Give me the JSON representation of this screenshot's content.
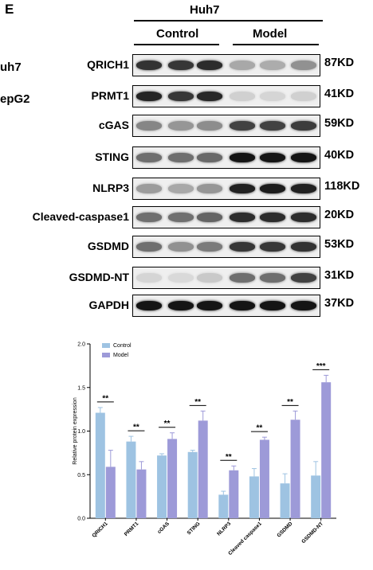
{
  "blot_panel": {
    "panel_letter": "E",
    "cell_line": "Huh7",
    "groups": [
      "Control",
      "Model"
    ],
    "cut_labels": [
      "uh7",
      "epG2"
    ],
    "rows": [
      {
        "protein": "QRICH1",
        "kd": "87KD",
        "intensity": [
          0.82,
          0.8,
          0.85,
          0.3,
          0.28,
          0.4
        ]
      },
      {
        "protein": "PRMT1",
        "kd": "41KD",
        "intensity": [
          0.88,
          0.8,
          0.87,
          0.12,
          0.1,
          0.12
        ]
      },
      {
        "protein": "cGAS",
        "kd": "59KD",
        "intensity": [
          0.45,
          0.38,
          0.42,
          0.75,
          0.75,
          0.78
        ]
      },
      {
        "protein": "STING",
        "kd": "40KD",
        "intensity": [
          0.55,
          0.55,
          0.58,
          0.95,
          0.95,
          0.95
        ]
      },
      {
        "protein": "NLRP3",
        "kd": "118KD",
        "intensity": [
          0.35,
          0.3,
          0.38,
          0.9,
          0.92,
          0.9
        ]
      },
      {
        "protein": "Cleaved-caspase1",
        "kd": "20KD",
        "intensity": [
          0.55,
          0.55,
          0.6,
          0.85,
          0.85,
          0.85
        ]
      },
      {
        "protein": "GSDMD",
        "kd": "53KD",
        "intensity": [
          0.55,
          0.4,
          0.5,
          0.8,
          0.8,
          0.82
        ]
      },
      {
        "protein": "GSDMD-NT",
        "kd": "31KD",
        "intensity": [
          0.1,
          0.08,
          0.15,
          0.55,
          0.55,
          0.75
        ]
      },
      {
        "protein": "GAPDH",
        "kd": "37KD",
        "intensity": [
          0.95,
          0.95,
          0.95,
          0.95,
          0.95,
          0.95
        ]
      }
    ]
  },
  "chart_data": {
    "type": "bar",
    "ylabel": "Relative protein expression",
    "ylim": [
      0,
      2.0
    ],
    "yticks": [
      "0.0",
      "0.5",
      "1.0",
      "1.5",
      "2.0"
    ],
    "categories": [
      "QRICH1",
      "PRMT1",
      "cGAS",
      "STING",
      "NLRP3",
      "Cleaved caspase1",
      "GSDMD",
      "GSDMD-NT"
    ],
    "series": [
      {
        "name": "Control",
        "color": "#9ec3e2",
        "values": [
          1.21,
          0.88,
          0.72,
          0.76,
          0.27,
          0.48,
          0.4,
          0.49
        ],
        "errors": [
          0.06,
          0.06,
          0.02,
          0.02,
          0.04,
          0.09,
          0.11,
          0.16
        ]
      },
      {
        "name": "Model",
        "color": "#9d9ad8",
        "values": [
          0.59,
          0.56,
          0.91,
          1.12,
          0.55,
          0.9,
          1.13,
          1.56
        ],
        "errors": [
          0.19,
          0.09,
          0.07,
          0.11,
          0.05,
          0.03,
          0.1,
          0.08
        ]
      }
    ],
    "significance": [
      "**",
      "**",
      "**",
      "**",
      "**",
      "**",
      "**",
      "***"
    ],
    "legend_position": "top-left"
  }
}
